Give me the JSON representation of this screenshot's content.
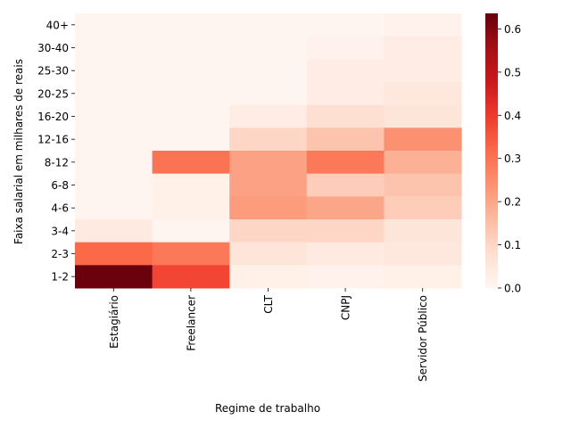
{
  "chart_data": {
    "type": "heatmap",
    "title": "",
    "xlabel": "Regime de trabalho",
    "ylabel": "Faixa salarial em milhares de reais",
    "x_categories": [
      "Estagiário",
      "Freelancer",
      "CLT",
      "CNPJ",
      "Servidor Público"
    ],
    "y_categories": [
      "40+",
      "30-40",
      "25-30",
      "20-25",
      "16-20",
      "12-16",
      "8-12",
      "6-8",
      "4-6",
      "3-4",
      "2-3",
      "1-2"
    ],
    "values": [
      [
        0.0,
        0.0,
        0.0,
        0.0,
        0.01
      ],
      [
        0.0,
        0.0,
        0.0,
        0.01,
        0.03
      ],
      [
        0.0,
        0.0,
        0.0,
        0.03,
        0.03
      ],
      [
        0.0,
        0.0,
        0.0,
        0.03,
        0.05
      ],
      [
        0.0,
        0.0,
        0.03,
        0.08,
        0.06
      ],
      [
        0.0,
        0.0,
        0.1,
        0.14,
        0.24
      ],
      [
        0.0,
        0.3,
        0.21,
        0.29,
        0.18
      ],
      [
        0.0,
        0.02,
        0.21,
        0.12,
        0.14
      ],
      [
        0.0,
        0.02,
        0.22,
        0.2,
        0.12
      ],
      [
        0.04,
        0.0,
        0.1,
        0.1,
        0.06
      ],
      [
        0.32,
        0.29,
        0.06,
        0.04,
        0.05
      ],
      [
        0.63,
        0.38,
        0.02,
        0.01,
        0.02
      ]
    ],
    "colorbar": {
      "colormap": "Reds",
      "min": 0.0,
      "max": 0.636,
      "ticks": [
        0.0,
        0.1,
        0.2,
        0.3,
        0.4,
        0.5,
        0.6
      ],
      "tick_labels": [
        "0.0",
        "0.1",
        "0.2",
        "0.3",
        "0.4",
        "0.5",
        "0.6"
      ]
    }
  }
}
